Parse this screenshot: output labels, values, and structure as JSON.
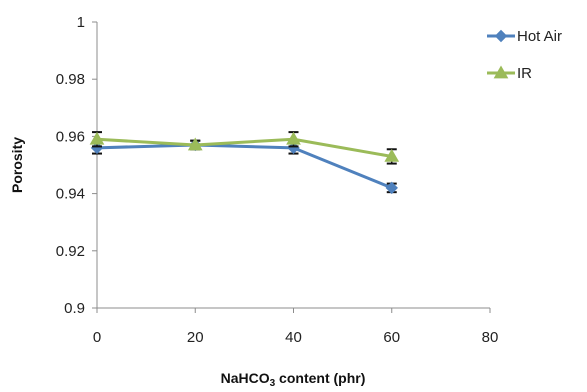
{
  "chart_data": {
    "type": "line",
    "title": "",
    "xlabel_main": "NaHCO",
    "xlabel_sub": "3",
    "xlabel_rest": " content (phr)",
    "ylabel": "Porosity",
    "xlim": [
      0,
      80
    ],
    "ylim": [
      0.9,
      1.0
    ],
    "x_ticks": [
      "0",
      "20",
      "40",
      "60",
      "80"
    ],
    "y_ticks": [
      "0.9",
      "0.92",
      "0.94",
      "0.96",
      "0.98",
      "1"
    ],
    "grid": false,
    "legend_position": "top-right",
    "error_bars": true,
    "series": [
      {
        "name": "Hot Air",
        "color": "#4F81BD",
        "marker": "diamond",
        "x": [
          0,
          20,
          40,
          60
        ],
        "y": [
          0.956,
          0.957,
          0.956,
          0.942
        ],
        "err": [
          0.002,
          0.0015,
          0.002,
          0.0015
        ]
      },
      {
        "name": "IR",
        "color": "#9BBB59",
        "marker": "triangle",
        "x": [
          0,
          20,
          40,
          60
        ],
        "y": [
          0.959,
          0.957,
          0.959,
          0.953
        ],
        "err": [
          0.0025,
          0.0015,
          0.0025,
          0.0025
        ]
      }
    ]
  }
}
